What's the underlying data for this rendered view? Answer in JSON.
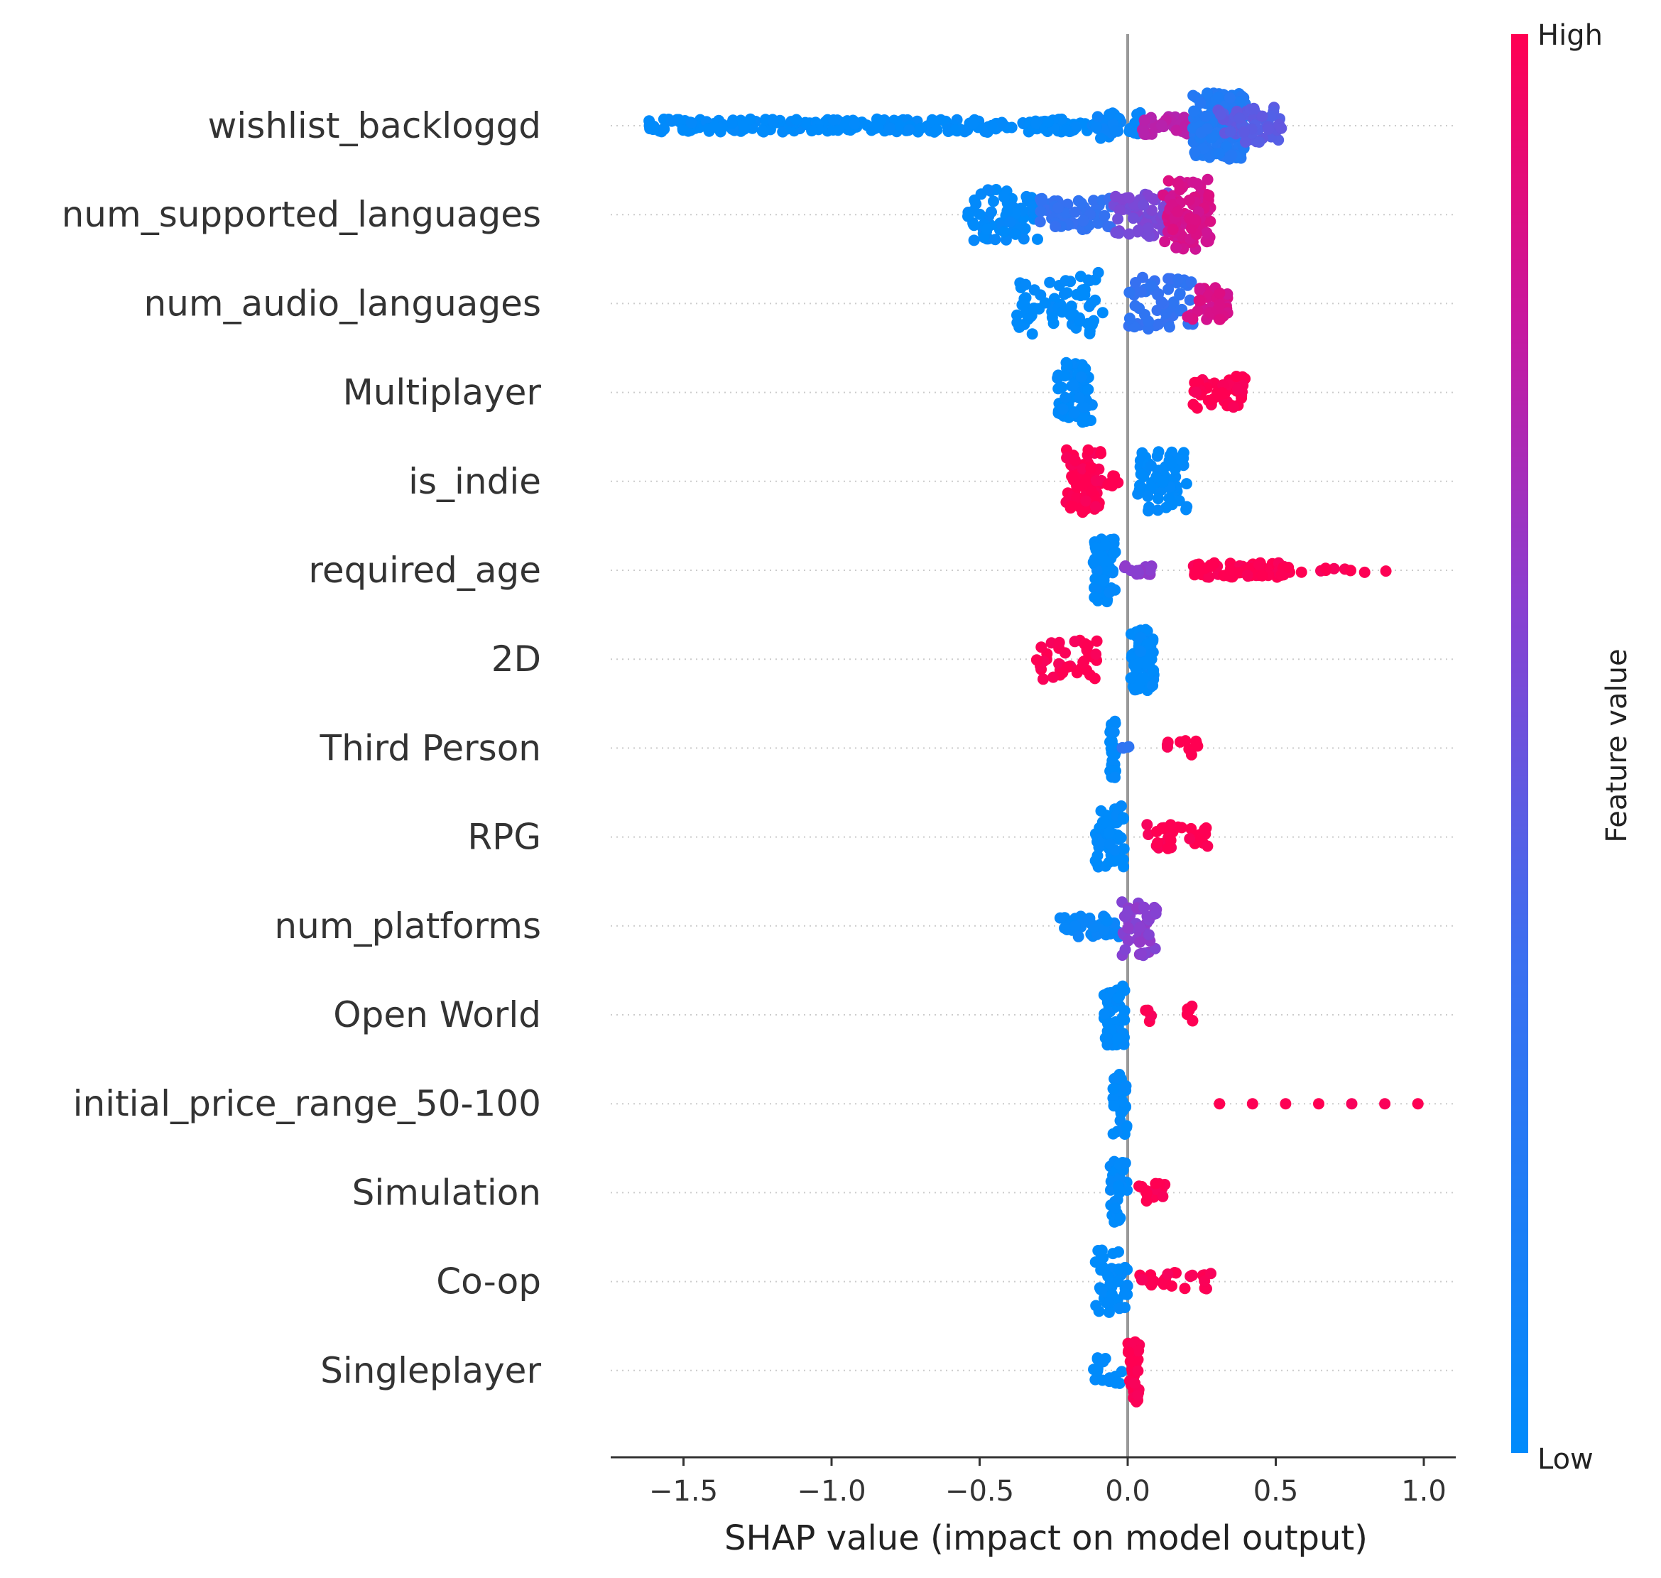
{
  "chart_data": {
    "type": "scatter",
    "subtype": "shap-beeswarm",
    "xlabel": "SHAP value (impact on model output)",
    "xlim": [
      -1.75,
      1.1
    ],
    "xticks": [
      -1.5,
      -1.0,
      -0.5,
      0.0,
      0.5,
      1.0
    ],
    "xtick_labels": [
      "−1.5",
      "−1.0",
      "−0.5",
      "0.0",
      "0.5",
      "1.0"
    ],
    "zero_line": true,
    "colorbar": {
      "label": "Feature value",
      "high_label": "High",
      "low_label": "Low",
      "low_color": "#008bfb",
      "high_color": "#ff0052"
    },
    "features": [
      {
        "name": "wishlist_backloggd",
        "clusters": [
          {
            "range": [
              -1.62,
              -0.12
            ],
            "color": 0.0,
            "n": 260,
            "height": 0.18
          },
          {
            "range": [
              -0.12,
              0.05
            ],
            "color": 0.05,
            "n": 40,
            "height": 0.35
          },
          {
            "range": [
              0.05,
              0.28
            ],
            "color": 0.75,
            "n": 50,
            "height": 0.25
          },
          {
            "range": [
              0.22,
              0.4
            ],
            "color": 0.2,
            "n": 160,
            "height": 0.9
          },
          {
            "range": [
              0.3,
              0.52
            ],
            "color": 0.45,
            "n": 60,
            "height": 0.5
          }
        ]
      },
      {
        "name": "num_supported_languages",
        "clusters": [
          {
            "range": [
              -0.54,
              -0.3
            ],
            "color": 0.02,
            "n": 70,
            "height": 0.7
          },
          {
            "range": [
              -0.3,
              -0.05
            ],
            "color": 0.3,
            "n": 60,
            "height": 0.45
          },
          {
            "range": [
              -0.05,
              0.15
            ],
            "color": 0.55,
            "n": 70,
            "height": 0.6
          },
          {
            "range": [
              0.12,
              0.28
            ],
            "color": 0.85,
            "n": 90,
            "height": 0.95
          }
        ]
      },
      {
        "name": "num_audio_languages",
        "clusters": [
          {
            "range": [
              -0.38,
              -0.08
            ],
            "color": 0.0,
            "n": 70,
            "height": 0.85
          },
          {
            "range": [
              0.0,
              0.22
            ],
            "color": 0.3,
            "n": 60,
            "height": 0.75
          },
          {
            "range": [
              0.2,
              0.34
            ],
            "color": 0.85,
            "n": 40,
            "height": 0.45
          }
        ]
      },
      {
        "name": "Multiplayer",
        "clusters": [
          {
            "range": [
              -0.24,
              -0.12
            ],
            "color": 0.0,
            "n": 60,
            "height": 0.85
          },
          {
            "range": [
              0.22,
              0.4
            ],
            "color": 1.0,
            "n": 50,
            "height": 0.45
          }
        ]
      },
      {
        "name": "is_indie",
        "clusters": [
          {
            "range": [
              -0.21,
              -0.09
            ],
            "color": 1.0,
            "n": 80,
            "height": 0.85
          },
          {
            "range": [
              -0.09,
              -0.03
            ],
            "color": 1.0,
            "n": 8,
            "height": 0.2
          },
          {
            "range": [
              0.03,
              0.2
            ],
            "color": 0.0,
            "n": 70,
            "height": 0.8
          }
        ]
      },
      {
        "name": "required_age",
        "clusters": [
          {
            "range": [
              -0.12,
              -0.04
            ],
            "color": 0.0,
            "n": 80,
            "height": 0.85
          },
          {
            "range": [
              -0.02,
              0.1
            ],
            "color": 0.6,
            "n": 15,
            "height": 0.12
          },
          {
            "range": [
              0.22,
              0.55
            ],
            "color": 1.0,
            "n": 70,
            "height": 0.2
          },
          {
            "range": [
              0.55,
              0.88
            ],
            "color": 1.0,
            "n": 10,
            "height": 0.06
          }
        ]
      },
      {
        "name": "2D",
        "clusters": [
          {
            "range": [
              -0.31,
              -0.1
            ],
            "color": 1.0,
            "n": 40,
            "height": 0.55
          },
          {
            "range": [
              0.01,
              0.09
            ],
            "color": 0.0,
            "n": 90,
            "height": 0.85
          }
        ]
      },
      {
        "name": "Third Person",
        "clusters": [
          {
            "range": [
              -0.06,
              -0.04
            ],
            "color": 0.0,
            "n": 25,
            "height": 0.8
          },
          {
            "range": [
              -0.04,
              0.02
            ],
            "color": 0.3,
            "n": 4,
            "height": 0.05
          },
          {
            "range": [
              0.08,
              0.24
            ],
            "color": 1.0,
            "n": 10,
            "height": 0.25
          }
        ]
      },
      {
        "name": "RPG",
        "clusters": [
          {
            "range": [
              -0.11,
              -0.01
            ],
            "color": 0.0,
            "n": 50,
            "height": 0.85
          },
          {
            "range": [
              0.06,
              0.27
            ],
            "color": 1.0,
            "n": 30,
            "height": 0.35
          }
        ]
      },
      {
        "name": "num_platforms",
        "clusters": [
          {
            "range": [
              -0.23,
              -0.02
            ],
            "color": 0.05,
            "n": 45,
            "height": 0.3
          },
          {
            "range": [
              -0.02,
              0.1
            ],
            "color": 0.6,
            "n": 45,
            "height": 0.8
          }
        ]
      },
      {
        "name": "Open World",
        "clusters": [
          {
            "range": [
              -0.08,
              -0.01
            ],
            "color": 0.0,
            "n": 50,
            "height": 0.85
          },
          {
            "range": [
              0.06,
              0.08
            ],
            "color": 1.0,
            "n": 5,
            "height": 0.2
          },
          {
            "range": [
              0.2,
              0.22
            ],
            "color": 1.0,
            "n": 6,
            "height": 0.3
          }
        ]
      },
      {
        "name": "initial_price_range_50-100",
        "clusters": [
          {
            "range": [
              -0.05,
              0.0
            ],
            "color": 0.0,
            "n": 35,
            "height": 0.85
          },
          {
            "range": [
              0.31,
              0.98
            ],
            "color": 1.0,
            "n": 7,
            "height": 0.0
          }
        ]
      },
      {
        "name": "Simulation",
        "clusters": [
          {
            "range": [
              -0.06,
              0.0
            ],
            "color": 0.0,
            "n": 40,
            "height": 0.85
          },
          {
            "range": [
              0.03,
              0.13
            ],
            "color": 1.0,
            "n": 20,
            "height": 0.25
          }
        ]
      },
      {
        "name": "Co-op",
        "clusters": [
          {
            "range": [
              -0.11,
              0.0
            ],
            "color": 0.0,
            "n": 50,
            "height": 0.85
          },
          {
            "range": [
              0.02,
              0.3
            ],
            "color": 1.0,
            "n": 25,
            "height": 0.25
          }
        ]
      },
      {
        "name": "Singleplayer",
        "clusters": [
          {
            "range": [
              -0.12,
              -0.02
            ],
            "color": 0.0,
            "n": 15,
            "height": 0.35
          },
          {
            "range": [
              0.0,
              0.04
            ],
            "color": 1.0,
            "n": 40,
            "height": 0.85
          }
        ]
      }
    ]
  }
}
